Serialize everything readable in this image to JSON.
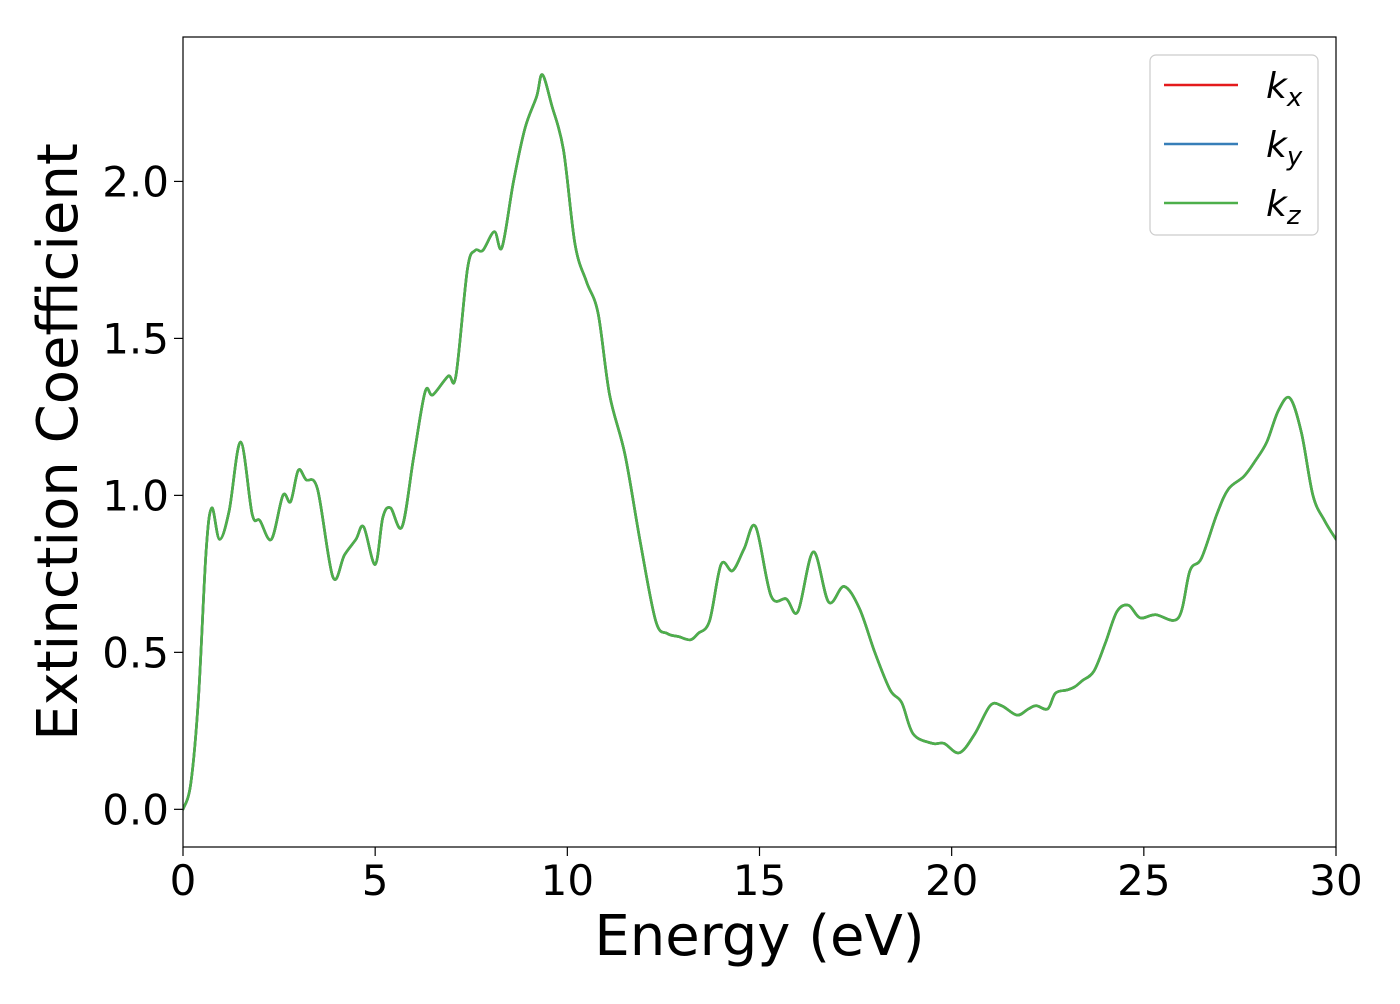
{
  "chart_data": {
    "type": "line",
    "title": "",
    "xlabel": "Energy (eV)",
    "ylabel": "Extinction Coefficient",
    "xlim": [
      0,
      30
    ],
    "ylim": [
      -0.12,
      2.46
    ],
    "x_ticks": [
      0,
      5,
      10,
      15,
      20,
      25,
      30
    ],
    "y_ticks": [
      0.0,
      0.5,
      1.0,
      1.5,
      2.0
    ],
    "x_tick_labels": [
      "0",
      "5",
      "10",
      "15",
      "20",
      "25",
      "30"
    ],
    "y_tick_labels": [
      "0.0",
      "0.5",
      "1.0",
      "1.5",
      "2.0"
    ],
    "grid": false,
    "legend_position": "top-right",
    "x": [
      0.0,
      0.2,
      0.4,
      0.6,
      0.75,
      0.95,
      1.2,
      1.5,
      1.8,
      2.0,
      2.3,
      2.6,
      2.8,
      3.0,
      3.2,
      3.5,
      3.9,
      4.2,
      4.5,
      4.7,
      5.0,
      5.2,
      5.4,
      5.7,
      6.0,
      6.3,
      6.5,
      6.9,
      7.1,
      7.4,
      7.6,
      7.8,
      8.1,
      8.3,
      8.6,
      8.9,
      9.2,
      9.35,
      9.6,
      9.9,
      10.2,
      10.5,
      10.8,
      11.1,
      11.5,
      11.9,
      12.3,
      12.6,
      12.9,
      13.2,
      13.4,
      13.7,
      14.0,
      14.3,
      14.6,
      14.9,
      15.3,
      15.7,
      16.0,
      16.4,
      16.8,
      17.2,
      17.6,
      18.0,
      18.4,
      18.7,
      19.0,
      19.5,
      19.8,
      20.2,
      20.6,
      21.0,
      21.3,
      21.7,
      22.0,
      22.2,
      22.5,
      22.7,
      23.0,
      23.2,
      23.4,
      23.7,
      24.0,
      24.3,
      24.6,
      24.9,
      25.3,
      25.9,
      26.2,
      26.5,
      26.9,
      27.2,
      27.6,
      27.9,
      28.2,
      28.5,
      28.8,
      29.1,
      29.4,
      29.7,
      30.0
    ],
    "series": [
      {
        "name": "k_x",
        "color": "#e41a1c",
        "values": [
          0.0,
          0.08,
          0.35,
          0.82,
          0.96,
          0.86,
          0.95,
          1.17,
          0.94,
          0.92,
          0.86,
          1.0,
          0.98,
          1.08,
          1.05,
          1.02,
          0.74,
          0.81,
          0.86,
          0.9,
          0.78,
          0.93,
          0.96,
          0.9,
          1.12,
          1.33,
          1.32,
          1.38,
          1.38,
          1.72,
          1.78,
          1.78,
          1.84,
          1.79,
          2.0,
          2.17,
          2.27,
          2.34,
          2.24,
          2.1,
          1.8,
          1.68,
          1.58,
          1.32,
          1.13,
          0.85,
          0.6,
          0.56,
          0.55,
          0.54,
          0.56,
          0.6,
          0.78,
          0.76,
          0.83,
          0.9,
          0.68,
          0.67,
          0.63,
          0.82,
          0.66,
          0.71,
          0.64,
          0.5,
          0.38,
          0.34,
          0.24,
          0.21,
          0.21,
          0.18,
          0.24,
          0.33,
          0.33,
          0.3,
          0.32,
          0.33,
          0.32,
          0.37,
          0.38,
          0.39,
          0.41,
          0.44,
          0.53,
          0.63,
          0.65,
          0.61,
          0.62,
          0.61,
          0.76,
          0.8,
          0.94,
          1.02,
          1.06,
          1.11,
          1.17,
          1.27,
          1.31,
          1.2,
          1.0,
          0.92,
          0.86
        ]
      },
      {
        "name": "k_y",
        "color": "#377eb8",
        "values": [
          0.0,
          0.08,
          0.35,
          0.82,
          0.96,
          0.86,
          0.95,
          1.17,
          0.94,
          0.92,
          0.86,
          1.0,
          0.98,
          1.08,
          1.05,
          1.02,
          0.74,
          0.81,
          0.86,
          0.9,
          0.78,
          0.93,
          0.96,
          0.9,
          1.12,
          1.33,
          1.32,
          1.38,
          1.38,
          1.72,
          1.78,
          1.78,
          1.84,
          1.79,
          2.0,
          2.17,
          2.27,
          2.34,
          2.24,
          2.1,
          1.8,
          1.68,
          1.58,
          1.32,
          1.13,
          0.85,
          0.6,
          0.56,
          0.55,
          0.54,
          0.56,
          0.6,
          0.78,
          0.76,
          0.83,
          0.9,
          0.68,
          0.67,
          0.63,
          0.82,
          0.66,
          0.71,
          0.64,
          0.5,
          0.38,
          0.34,
          0.24,
          0.21,
          0.21,
          0.18,
          0.24,
          0.33,
          0.33,
          0.3,
          0.32,
          0.33,
          0.32,
          0.37,
          0.38,
          0.39,
          0.41,
          0.44,
          0.53,
          0.63,
          0.65,
          0.61,
          0.62,
          0.61,
          0.76,
          0.8,
          0.94,
          1.02,
          1.06,
          1.11,
          1.17,
          1.27,
          1.31,
          1.2,
          1.0,
          0.92,
          0.86
        ]
      },
      {
        "name": "k_z",
        "color": "#4daf4a",
        "values": [
          0.0,
          0.08,
          0.35,
          0.82,
          0.96,
          0.86,
          0.95,
          1.17,
          0.94,
          0.92,
          0.86,
          1.0,
          0.98,
          1.08,
          1.05,
          1.02,
          0.74,
          0.81,
          0.86,
          0.9,
          0.78,
          0.93,
          0.96,
          0.9,
          1.12,
          1.33,
          1.32,
          1.38,
          1.38,
          1.72,
          1.78,
          1.78,
          1.84,
          1.79,
          2.0,
          2.17,
          2.27,
          2.34,
          2.24,
          2.1,
          1.8,
          1.68,
          1.58,
          1.32,
          1.13,
          0.85,
          0.6,
          0.56,
          0.55,
          0.54,
          0.56,
          0.6,
          0.78,
          0.76,
          0.83,
          0.9,
          0.68,
          0.67,
          0.63,
          0.82,
          0.66,
          0.71,
          0.64,
          0.5,
          0.38,
          0.34,
          0.24,
          0.21,
          0.21,
          0.18,
          0.24,
          0.33,
          0.33,
          0.3,
          0.32,
          0.33,
          0.32,
          0.37,
          0.38,
          0.39,
          0.41,
          0.44,
          0.53,
          0.63,
          0.65,
          0.61,
          0.62,
          0.61,
          0.76,
          0.8,
          0.94,
          1.02,
          1.06,
          1.11,
          1.17,
          1.27,
          1.31,
          1.2,
          1.0,
          0.92,
          0.86
        ]
      }
    ],
    "legend": [
      {
        "symbol": "k",
        "subscript": "x"
      },
      {
        "symbol": "k",
        "subscript": "y"
      },
      {
        "symbol": "k",
        "subscript": "z"
      }
    ]
  }
}
